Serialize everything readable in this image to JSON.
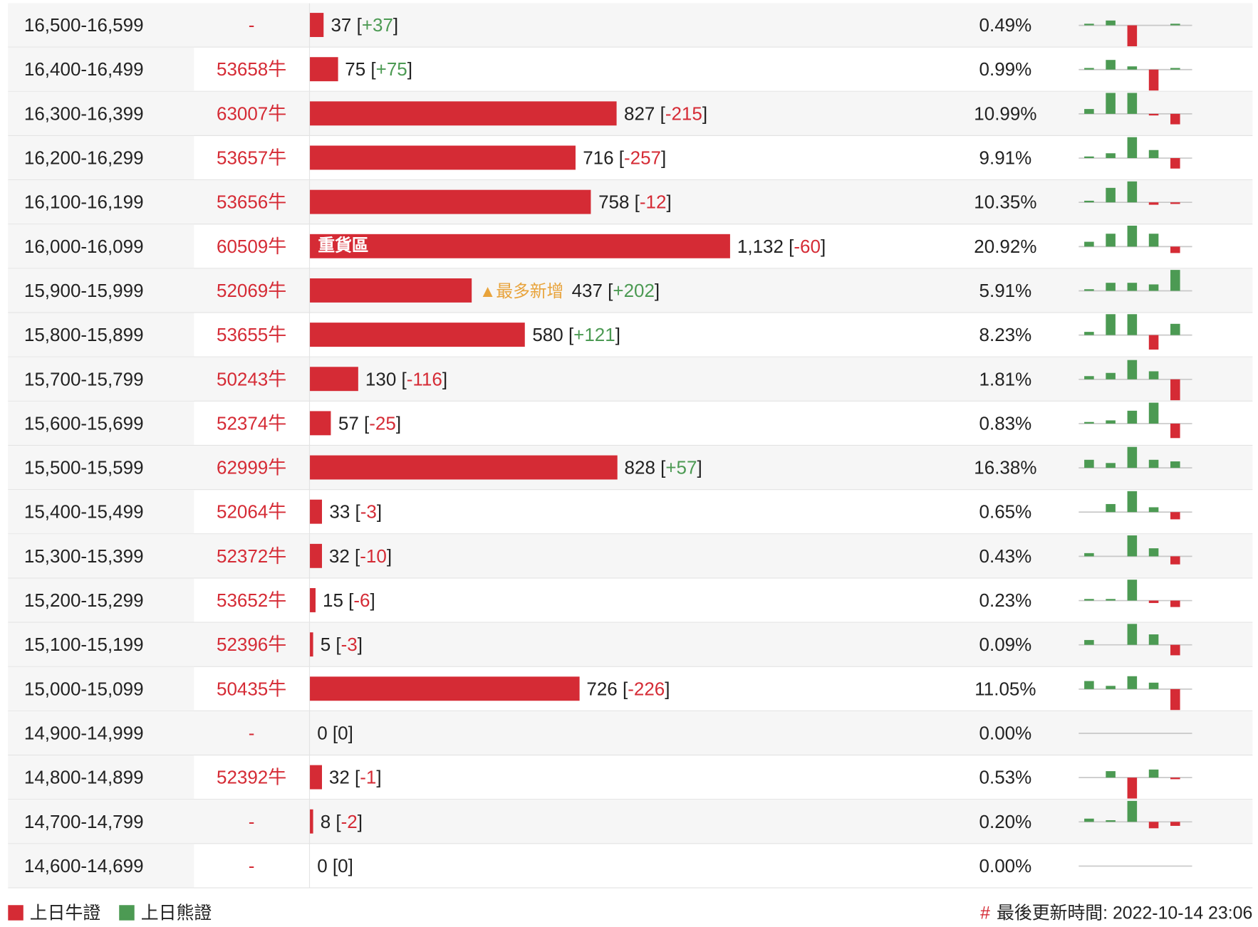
{
  "rows": [
    {
      "range": "16,500-16,599",
      "code": "-",
      "open_interest": 37,
      "change": "+37",
      "share": "0.49%",
      "trend": [
        2,
        6,
        -26,
        0,
        2
      ]
    },
    {
      "range": "16,400-16,499",
      "code": "53658牛",
      "open_interest": 75,
      "change": "+75",
      "share": "0.99%",
      "trend": [
        2,
        12,
        4,
        -26,
        2
      ]
    },
    {
      "range": "16,300-16,399",
      "code": "63007牛",
      "open_interest": 827,
      "change": "-215",
      "share": "10.99%",
      "trend": [
        6,
        26,
        26,
        -2,
        -13
      ]
    },
    {
      "range": "16,200-16,299",
      "code": "53657牛",
      "open_interest": 716,
      "change": "-257",
      "share": "9.91%",
      "trend": [
        2,
        6,
        26,
        10,
        -13
      ]
    },
    {
      "range": "16,100-16,199",
      "code": "53656牛",
      "open_interest": 758,
      "change": "-12",
      "share": "10.35%",
      "trend": [
        2,
        18,
        26,
        -3,
        -2
      ]
    },
    {
      "range": "16,000-16,099",
      "code": "60509牛",
      "open_interest": {
        "value": 1132,
        "label": "1,132"
      },
      "change": "-60",
      "share": "20.92%",
      "trend": [
        6,
        16,
        26,
        16,
        -8
      ],
      "tag": "重貨區"
    },
    {
      "range": "15,900-15,999",
      "code": "52069牛",
      "open_interest": 437,
      "change": "+202",
      "share": "5.91%",
      "trend": [
        2,
        10,
        10,
        8,
        26
      ],
      "tag": "▲最多新增"
    },
    {
      "range": "15,800-15,899",
      "code": "53655牛",
      "open_interest": 580,
      "change": "+121",
      "share": "8.23%",
      "trend": [
        4,
        26,
        26,
        -18,
        14
      ]
    },
    {
      "range": "15,700-15,799",
      "code": "50243牛",
      "open_interest": 130,
      "change": "-116",
      "share": "1.81%",
      "trend": [
        4,
        8,
        24,
        10,
        -26
      ]
    },
    {
      "range": "15,600-15,699",
      "code": "52374牛",
      "open_interest": 57,
      "change": "-25",
      "share": "0.83%",
      "trend": [
        2,
        4,
        16,
        26,
        -18
      ]
    },
    {
      "range": "15,500-15,599",
      "code": "62999牛",
      "open_interest": 828,
      "change": "+57",
      "share": "16.38%",
      "trend": [
        10,
        6,
        26,
        10,
        8
      ]
    },
    {
      "range": "15,400-15,499",
      "code": "52064牛",
      "open_interest": 33,
      "change": "-3",
      "share": "0.65%",
      "trend": [
        0,
        10,
        26,
        6,
        -9
      ]
    },
    {
      "range": "15,300-15,399",
      "code": "52372牛",
      "open_interest": 32,
      "change": "-10",
      "share": "0.43%",
      "trend": [
        4,
        0,
        26,
        10,
        -10
      ]
    },
    {
      "range": "15,200-15,299",
      "code": "53652牛",
      "open_interest": 15,
      "change": "-6",
      "share": "0.23%",
      "trend": [
        2,
        2,
        26,
        -3,
        -8
      ]
    },
    {
      "range": "15,100-15,199",
      "code": "52396牛",
      "open_interest": 5,
      "change": "-3",
      "share": "0.09%",
      "trend": [
        6,
        0,
        26,
        13,
        -13
      ]
    },
    {
      "range": "15,000-15,099",
      "code": "50435牛",
      "open_interest": 726,
      "change": "-226",
      "share": "11.05%",
      "trend": [
        10,
        4,
        16,
        8,
        -26
      ]
    },
    {
      "range": "14,900-14,999",
      "code": "-",
      "open_interest": 0,
      "change": "0",
      "share": "0.00%",
      "trend": [
        0,
        0,
        0,
        0,
        0
      ]
    },
    {
      "range": "14,800-14,899",
      "code": "52392牛",
      "open_interest": 32,
      "change": "-1",
      "share": "0.53%",
      "trend": [
        0,
        8,
        -26,
        10,
        -2
      ]
    },
    {
      "range": "14,700-14,799",
      "code": "-",
      "open_interest": 8,
      "change": "-2",
      "share": "0.20%",
      "trend": [
        4,
        2,
        26,
        -8,
        -5
      ]
    },
    {
      "range": "14,600-14,699",
      "code": "-",
      "open_interest": 0,
      "change": "0",
      "share": "0.00%",
      "trend": [
        0,
        0,
        0,
        0,
        0
      ]
    }
  ],
  "legend": [
    {
      "name": "上日牛證",
      "color": "#d52b35"
    },
    {
      "name": "上日熊證",
      "color": "#4c9a53"
    }
  ],
  "footer": {
    "mark": "#",
    "updated": "最後更新時間: 2022-10-14 23:06"
  }
}
